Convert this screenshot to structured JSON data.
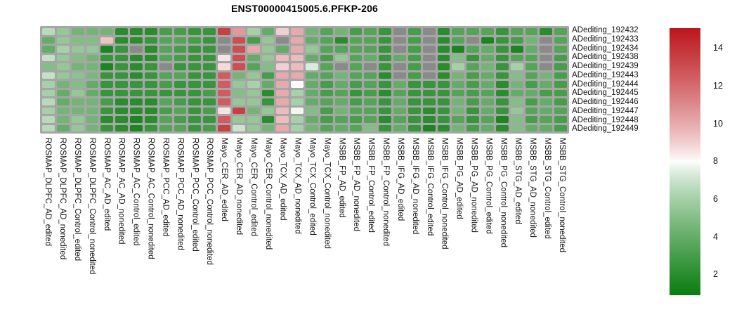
{
  "title": "ENST00000415005.6.PFKP-206",
  "chart_data": {
    "type": "heatmap",
    "title": "ENST00000415005.6.PFKP-206",
    "legend_position": "right",
    "grid": true,
    "rows": [
      "ADediting_192432",
      "ADediting_192433",
      "ADediting_192434",
      "ADediting_192438",
      "ADediting_192439",
      "ADediting_192443",
      "ADediting_192444",
      "ADediting_192445",
      "ADediting_192446",
      "ADediting_192447",
      "ADediting_192448",
      "ADediting_192449"
    ],
    "columns": [
      "ROSMAP_DLPFC_AD_edited",
      "ROSMAP_DLPFC_AD_nonedited",
      "ROSMAP_DLPFC_Control_edited",
      "ROSMAP_DLPFC_Control_nonedited",
      "ROSMAP_AC_AD_edited",
      "ROSMAP_AC_AD_nonedited",
      "ROSMAP_AC_Control_edited",
      "ROSMAP_AC_Control_nonedited",
      "ROSMAP_PCC_AD_edited",
      "ROSMAP_PCC_AD_nonedited",
      "ROSMAP_PCC_Control_edited",
      "ROSMAP_PCC_Control_nonedited",
      "Mayo_CER_AD_edited",
      "Mayo_CER_AD_nonedited",
      "Mayo_CER_Control_edited",
      "Mayo_CER_Control_nonedited",
      "Mayo_TCX_AD_edited",
      "Mayo_TCX_AD_nonedited",
      "Mayo_TCX_Control_edited",
      "Mayo_TCX_Control_nonedited",
      "MSBB_FP_AD_edited",
      "MSBB_FP_AD_nonedited",
      "MSBB_FP_Control_edited",
      "MSBB_FP_Control_nonedited",
      "MSBB_IFG_AD_edited",
      "MSBB_IFG_AD_nonedited",
      "MSBB_IFG_Control_edited",
      "MSBB_IFG_Control_nonedited",
      "MSBB_PG_AD_edited",
      "MSBB_PG_AD_nonedited",
      "MSBB_PG_Control_edited",
      "MSBB_PG_Control_nonedited",
      "MSBB_STG_AD_edited",
      "MSBB_STG_AD_nonedited",
      "MSBB_STG_Control_edited",
      "MSBB_STG_Control_nonedited"
    ],
    "values": [
      [
        6.5,
        5.5,
        4.5,
        4.5,
        4.5,
        2,
        2,
        2,
        3,
        3,
        2.5,
        2.5,
        13.5,
        10.5,
        6,
        4,
        9,
        10,
        4.5,
        3.5,
        4.5,
        3,
        3.5,
        2.5,
        null,
        3,
        null,
        2,
        3.5,
        3.5,
        3.5,
        2.5,
        3.5,
        3.5,
        2,
        3.5
      ],
      [
        4,
        5.5,
        5,
        5,
        9.3,
        2,
        2,
        2.5,
        3.5,
        3.5,
        3,
        2.5,
        null,
        13,
        3,
        5.5,
        null,
        10,
        4,
        3.5,
        2,
        3.5,
        3.5,
        2.5,
        null,
        3,
        null,
        2,
        3.5,
        null,
        1.5,
        2.5,
        3,
        4.5,
        null,
        3.5
      ],
      [
        4,
        6,
        5.5,
        5.5,
        1.5,
        2.5,
        null,
        2,
        3.5,
        3,
        2.5,
        2.5,
        null,
        13,
        10,
        5.5,
        4,
        10,
        5.5,
        3.5,
        3.5,
        3.5,
        3.5,
        2.5,
        null,
        3,
        null,
        2,
        1.5,
        3.5,
        4,
        2.5,
        1.5,
        4,
        null,
        3.5
      ],
      [
        6.8,
        5.5,
        5,
        4.5,
        2.5,
        2.5,
        2,
        2,
        3.5,
        3,
        2.5,
        2.5,
        8.5,
        13,
        4,
        5.5,
        9.5,
        9.5,
        4,
        3,
        5.5,
        3.5,
        4,
        2.5,
        4,
        3,
        null,
        2,
        5,
        2.5,
        4,
        2.5,
        3.5,
        3.5,
        null,
        3
      ],
      [
        5,
        5.5,
        4.5,
        4.5,
        1.5,
        2.5,
        2,
        2.5,
        null,
        2.5,
        2.5,
        2.5,
        8.7,
        13,
        3.5,
        5,
        9,
        9.5,
        7.3,
        3.5,
        null,
        3.5,
        null,
        2.5,
        null,
        3,
        null,
        2,
        6,
        3.5,
        4.5,
        2.5,
        6,
        3.5,
        null,
        3
      ],
      [
        6.8,
        5.5,
        5.3,
        4.7,
        2.5,
        2.5,
        2,
        2.5,
        3.5,
        3.5,
        2.5,
        2.5,
        12.5,
        4.5,
        5.5,
        3,
        10,
        10,
        4,
        3.5,
        4.5,
        3.5,
        3.5,
        2,
        null,
        3,
        null,
        2,
        4.5,
        3,
        4,
        2.5,
        5,
        3.5,
        4.5,
        3
      ],
      [
        6,
        4.5,
        5,
        4,
        2.5,
        2.5,
        2.5,
        2.5,
        3,
        2.5,
        2.5,
        2.5,
        12.5,
        5.5,
        6,
        4,
        10,
        8,
        4,
        3,
        4,
        3,
        3.5,
        2.5,
        4,
        2.5,
        2.5,
        2.5,
        4,
        3,
        4,
        2,
        4.5,
        3,
        4,
        3
      ],
      [
        6,
        4,
        5.5,
        4,
        2.5,
        2.5,
        2.5,
        2.5,
        2.5,
        2.5,
        2.5,
        3,
        12.5,
        5,
        5.5,
        2,
        10,
        6,
        4,
        3,
        3.5,
        2.5,
        3,
        2,
        3.5,
        2.5,
        2.5,
        2.5,
        3.5,
        3,
        3.5,
        2,
        4,
        4,
        3,
        3
      ],
      [
        6.5,
        4,
        4.5,
        4.5,
        3,
        2,
        2,
        2,
        3.5,
        3,
        2.5,
        2.5,
        12.5,
        5.5,
        5.5,
        2.5,
        10,
        6,
        4,
        3.5,
        4,
        3,
        3.5,
        2.5,
        4,
        2.5,
        2.5,
        2.5,
        4.5,
        3,
        4,
        2.5,
        5,
        3,
        4,
        3
      ],
      [
        6,
        4.5,
        4.5,
        4.5,
        2.5,
        2,
        2,
        2,
        3,
        3.5,
        2.5,
        3,
        8.5,
        13.5,
        4.5,
        5.5,
        9.5,
        7.8,
        5,
        3,
        4.5,
        3.5,
        3.5,
        2.5,
        4,
        2.5,
        2,
        2.5,
        4.5,
        2.5,
        4,
        2.5,
        5.5,
        3.5,
        4,
        3.5
      ],
      [
        6.5,
        4.5,
        5.5,
        4.5,
        2,
        2,
        1.5,
        2,
        3.5,
        3,
        2.5,
        2.5,
        12.5,
        5.5,
        5.5,
        2,
        9.5,
        6,
        4,
        3,
        3.5,
        3,
        3.5,
        2,
        3.5,
        2.5,
        2,
        2.5,
        3.5,
        2.5,
        3.5,
        1.5,
        5,
        3,
        3.5,
        3
      ],
      [
        6.5,
        4,
        5.5,
        4.5,
        2.5,
        2,
        1.5,
        2.5,
        3.5,
        3.5,
        2.5,
        3,
        13.5,
        7,
        5.5,
        4.5,
        10,
        6,
        4.5,
        3.5,
        4,
        3.5,
        5,
        2.5,
        4,
        2.5,
        1.5,
        2,
        4.5,
        3,
        4,
        2,
        5,
        4,
        4,
        3
      ]
    ],
    "colorbar": {
      "ticks": [
        14,
        12,
        10,
        8,
        6,
        4,
        2
      ],
      "domain_min": 0.9,
      "domain_max": 15.05,
      "midpoint": 8
    },
    "colors": {
      "low": "#0a7d10",
      "mid": "#ffffff",
      "high": "#bb161b",
      "na": "#8a8a8a",
      "grid": "#a6a6a6"
    }
  }
}
